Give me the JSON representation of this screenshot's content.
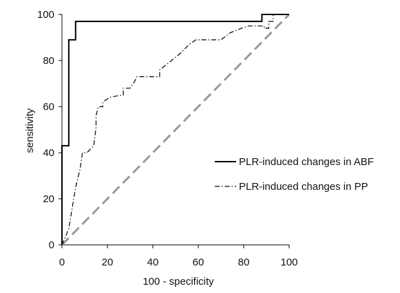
{
  "chart_data": {
    "type": "line",
    "title": "",
    "xlabel": "100 - specificity",
    "ylabel": "sensitivity",
    "xlim": [
      0,
      100
    ],
    "ylim": [
      0,
      100
    ],
    "xticks": [
      0,
      20,
      40,
      60,
      80,
      100
    ],
    "yticks": [
      0,
      20,
      40,
      60,
      80,
      100
    ],
    "grid": false,
    "legend_position": "right",
    "series": [
      {
        "name": "PLR-induced changes in ABF",
        "style": "solid",
        "color": "#000000",
        "x": [
          0,
          0,
          3,
          3,
          6,
          6,
          88,
          88,
          94,
          94,
          100
        ],
        "y": [
          0,
          43,
          43,
          89,
          89,
          97,
          97,
          100,
          100,
          100,
          100
        ]
      },
      {
        "name": "PLR-induced changes in PP",
        "style": "dash-dot",
        "color": "#000000",
        "x": [
          0,
          3,
          6,
          8,
          9,
          11,
          11,
          14,
          15,
          15,
          16,
          18,
          18,
          21,
          26,
          27,
          27,
          30,
          32,
          33,
          40,
          43,
          43,
          47,
          52,
          56,
          59,
          62,
          65,
          70,
          74,
          79,
          82,
          85,
          87,
          89,
          89,
          91,
          91,
          93,
          93,
          97,
          100
        ],
        "y": [
          0,
          7,
          25,
          33,
          40,
          40,
          40,
          43,
          51,
          56,
          60,
          60,
          62,
          64,
          65,
          65,
          68,
          68,
          71,
          73,
          73,
          73,
          76,
          79,
          83,
          87,
          89,
          89,
          89,
          89,
          92,
          94,
          95,
          95,
          95,
          95,
          94,
          94,
          97,
          97,
          100,
          100,
          100
        ]
      },
      {
        "name": "",
        "style": "dashed",
        "color": "#999999",
        "x": [
          0,
          100
        ],
        "y": [
          0,
          100
        ]
      }
    ]
  }
}
